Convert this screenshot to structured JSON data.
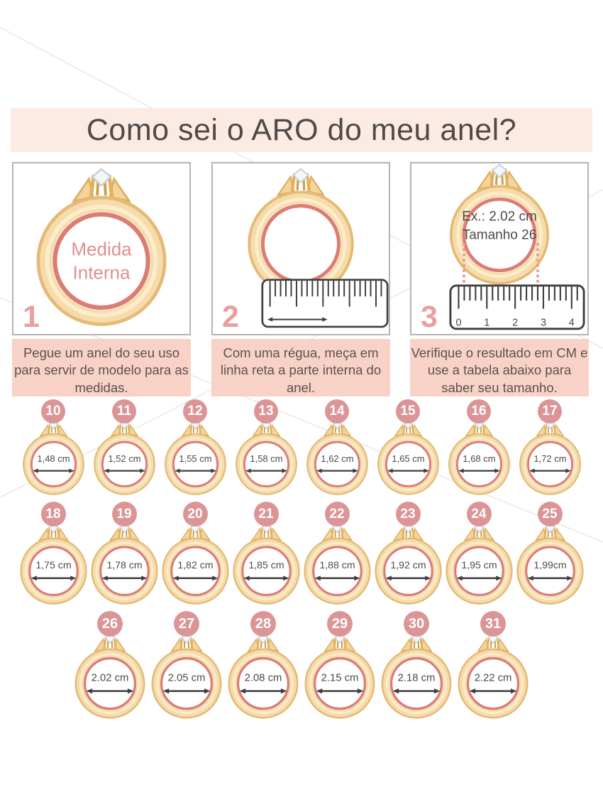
{
  "header": {
    "title": "Como sei o ARO do meu anel?"
  },
  "steps": [
    {
      "number": "1",
      "ring_text_line1": "Medida",
      "ring_text_line2": "Interna",
      "caption": "Pegue um anel do seu uso para servir de modelo para as medidas."
    },
    {
      "number": "2",
      "caption": "Com uma régua, meça em linha reta a parte interna do anel."
    },
    {
      "number": "3",
      "ring_text_line1": "Ex.: 2.02 cm",
      "ring_text_line2": "Tamanho 26",
      "ruler_numbers": [
        "0",
        "1",
        "2",
        "3",
        "4"
      ],
      "caption": "Verifique o resultado em CM e use a tabela abaixo para saber seu tamanho."
    }
  ],
  "size_chart": {
    "rows": [
      {
        "sizes": [
          {
            "size": "10",
            "diameter": "1,48 cm"
          },
          {
            "size": "11",
            "diameter": "1,52 cm"
          },
          {
            "size": "12",
            "diameter": "1,55 cm"
          },
          {
            "size": "13",
            "diameter": "1,58 cm"
          },
          {
            "size": "14",
            "diameter": "1,62 cm"
          },
          {
            "size": "15",
            "diameter": "1,65 cm"
          },
          {
            "size": "16",
            "diameter": "1,68 cm"
          },
          {
            "size": "17",
            "diameter": "1,72 cm"
          }
        ]
      },
      {
        "sizes": [
          {
            "size": "18",
            "diameter": "1,75 cm"
          },
          {
            "size": "19",
            "diameter": "1,78 cm"
          },
          {
            "size": "20",
            "diameter": "1,82 cm"
          },
          {
            "size": "21",
            "diameter": "1,85 cm"
          },
          {
            "size": "22",
            "diameter": "1,88 cm"
          },
          {
            "size": "23",
            "diameter": "1,92 cm"
          },
          {
            "size": "24",
            "diameter": "1,95 cm"
          },
          {
            "size": "25",
            "diameter": "1,99cm"
          }
        ]
      },
      {
        "sizes": [
          {
            "size": "26",
            "diameter": "2.02 cm"
          },
          {
            "size": "27",
            "diameter": "2.05 cm"
          },
          {
            "size": "28",
            "diameter": "2.08 cm"
          },
          {
            "size": "29",
            "diameter": "2.15 cm"
          },
          {
            "size": "30",
            "diameter": "2.18 cm"
          },
          {
            "size": "31",
            "diameter": "2.22 cm"
          }
        ]
      }
    ]
  },
  "colors": {
    "title_background": "#fcebe2",
    "caption_background": "#f8d2c6",
    "badge_pink": "#db9597",
    "step_number_pink": "#e89f9e",
    "ring_gold": "#f6dcab",
    "ring_gold_stroke": "#e5ba77",
    "inner_ring_pink": "#db7d73",
    "text_dark": "#4e4947"
  }
}
